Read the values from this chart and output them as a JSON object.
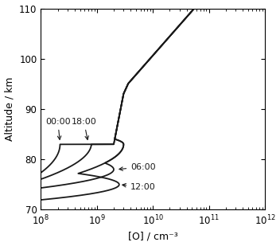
{
  "xlabel": "[O] / cm⁻³",
  "ylabel": "Altitude / km",
  "ylim": [
    70,
    110
  ],
  "yticks": [
    70,
    80,
    90,
    100,
    110
  ],
  "xlim": [
    100000000.0,
    1000000000000.0
  ],
  "background_color": "#ffffff",
  "line_color": "#1a1a1a"
}
